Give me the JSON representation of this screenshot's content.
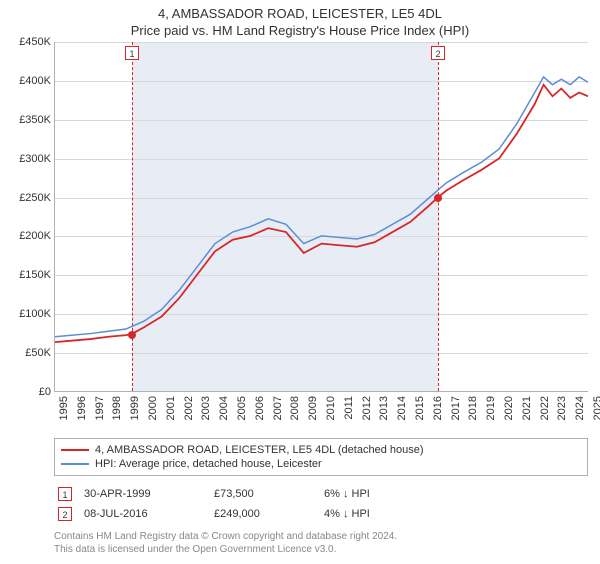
{
  "title_main": "4, AMBASSADOR ROAD, LEICESTER, LE5 4DL",
  "title_sub": "Price paid vs. HM Land Registry's House Price Index (HPI)",
  "chart": {
    "type": "line",
    "x_start": 1995,
    "x_end": 2025,
    "x_ticks": [
      1995,
      1996,
      1997,
      1998,
      1999,
      2000,
      2001,
      2002,
      2003,
      2004,
      2005,
      2006,
      2007,
      2008,
      2009,
      2010,
      2011,
      2012,
      2013,
      2014,
      2015,
      2016,
      2017,
      2018,
      2019,
      2020,
      2021,
      2022,
      2023,
      2024,
      2025
    ],
    "y_min": 0,
    "y_max": 450000,
    "y_tick_step": 50000,
    "y_ticks": [
      "£0",
      "£50K",
      "£100K",
      "£150K",
      "£200K",
      "£250K",
      "£300K",
      "£350K",
      "£400K",
      "£450K"
    ],
    "grid_color": "#d8d8d8",
    "background_color": "#ffffff",
    "shaded_region_color": "#e8edf5",
    "shaded_start": 1999.33,
    "shaded_end": 2016.52,
    "series": [
      {
        "name": "4, AMBASSADOR ROAD, LEICESTER, LE5 4DL (detached house)",
        "color": "#d62728",
        "line_width": 1.8,
        "data": [
          [
            1995,
            63000
          ],
          [
            1996,
            65000
          ],
          [
            1997,
            67000
          ],
          [
            1998,
            70000
          ],
          [
            1999,
            72000
          ],
          [
            1999.33,
            73500
          ],
          [
            2000,
            82000
          ],
          [
            2001,
            96000
          ],
          [
            2002,
            120000
          ],
          [
            2003,
            150000
          ],
          [
            2004,
            180000
          ],
          [
            2005,
            195000
          ],
          [
            2006,
            200000
          ],
          [
            2007,
            210000
          ],
          [
            2008,
            205000
          ],
          [
            2009,
            178000
          ],
          [
            2010,
            190000
          ],
          [
            2011,
            188000
          ],
          [
            2012,
            186000
          ],
          [
            2013,
            192000
          ],
          [
            2014,
            205000
          ],
          [
            2015,
            218000
          ],
          [
            2016,
            238000
          ],
          [
            2016.52,
            249000
          ],
          [
            2017,
            258000
          ],
          [
            2018,
            272000
          ],
          [
            2019,
            285000
          ],
          [
            2020,
            300000
          ],
          [
            2021,
            332000
          ],
          [
            2022,
            370000
          ],
          [
            2022.5,
            395000
          ],
          [
            2023,
            380000
          ],
          [
            2023.5,
            390000
          ],
          [
            2024,
            378000
          ],
          [
            2024.5,
            385000
          ],
          [
            2025,
            380000
          ]
        ]
      },
      {
        "name": "HPI: Average price, detached house, Leicester",
        "color": "#5b8dd6",
        "line_width": 1.5,
        "data": [
          [
            1995,
            70000
          ],
          [
            1996,
            72000
          ],
          [
            1997,
            74000
          ],
          [
            1998,
            77000
          ],
          [
            1999,
            80000
          ],
          [
            2000,
            90000
          ],
          [
            2001,
            105000
          ],
          [
            2002,
            130000
          ],
          [
            2003,
            160000
          ],
          [
            2004,
            190000
          ],
          [
            2005,
            205000
          ],
          [
            2006,
            212000
          ],
          [
            2007,
            222000
          ],
          [
            2008,
            215000
          ],
          [
            2009,
            190000
          ],
          [
            2010,
            200000
          ],
          [
            2011,
            198000
          ],
          [
            2012,
            196000
          ],
          [
            2013,
            202000
          ],
          [
            2014,
            215000
          ],
          [
            2015,
            228000
          ],
          [
            2016,
            248000
          ],
          [
            2017,
            268000
          ],
          [
            2018,
            282000
          ],
          [
            2019,
            295000
          ],
          [
            2020,
            312000
          ],
          [
            2021,
            345000
          ],
          [
            2022,
            385000
          ],
          [
            2022.5,
            405000
          ],
          [
            2023,
            395000
          ],
          [
            2023.5,
            402000
          ],
          [
            2024,
            395000
          ],
          [
            2024.5,
            405000
          ],
          [
            2025,
            398000
          ]
        ]
      }
    ],
    "markers": [
      {
        "id": "1",
        "x": 1999.33,
        "y": 73500,
        "color": "#d62728",
        "line_color": "#d62728"
      },
      {
        "id": "2",
        "x": 2016.52,
        "y": 249000,
        "color": "#d62728",
        "line_color": "#d62728"
      }
    ],
    "label_fontsize": 11,
    "title_fontsize": 13
  },
  "legend": {
    "items": [
      {
        "color": "#d62728",
        "label": "4, AMBASSADOR ROAD, LEICESTER, LE5 4DL (detached house)"
      },
      {
        "color": "#5b8dd6",
        "label": "HPI: Average price, detached house, Leicester"
      }
    ]
  },
  "transactions": [
    {
      "marker_id": "1",
      "marker_color": "#d62728",
      "date": "30-APR-1999",
      "price": "£73,500",
      "delta": "6% ↓ HPI"
    },
    {
      "marker_id": "2",
      "marker_color": "#d62728",
      "date": "08-JUL-2016",
      "price": "£249,000",
      "delta": "4% ↓ HPI"
    }
  ],
  "footer_line1": "Contains HM Land Registry data © Crown copyright and database right 2024.",
  "footer_line2": "This data is licensed under the Open Government Licence v3.0."
}
